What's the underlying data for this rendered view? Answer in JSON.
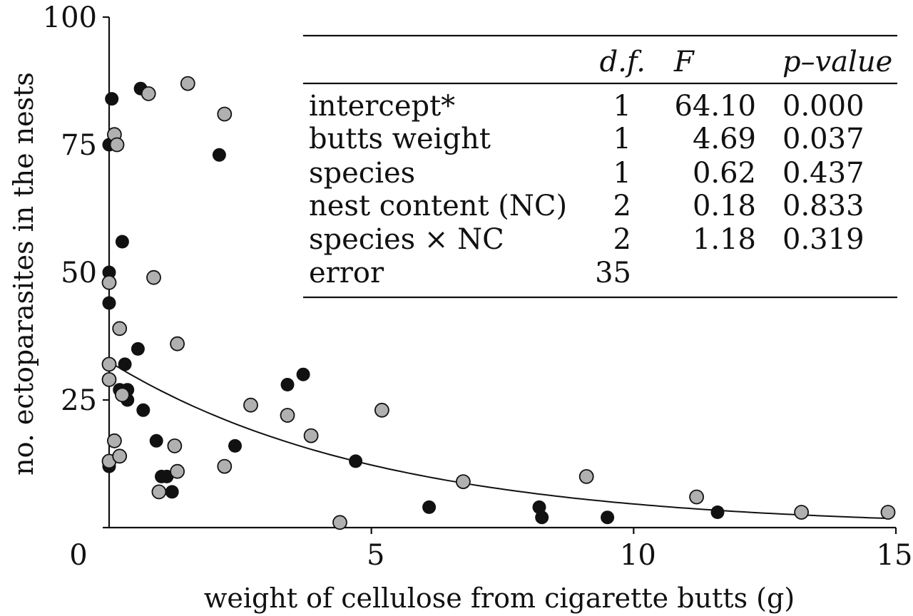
{
  "chart_data": {
    "type": "scatter",
    "xlabel": "weight of cellulose from cigarette butts (g)",
    "ylabel": "no. ectoparasites in the nests",
    "xlim": [
      0,
      15
    ],
    "ylim": [
      0,
      100
    ],
    "x_ticks": [
      "0",
      "5",
      "10",
      "15"
    ],
    "y_ticks": [
      "25",
      "50",
      "75",
      "100"
    ],
    "grid": false,
    "series": [
      {
        "color": "#111111",
        "marker": "circle-black",
        "points": [
          [
            0.0,
            12
          ],
          [
            0.0,
            44
          ],
          [
            0.0,
            50
          ],
          [
            0.0,
            75
          ],
          [
            0.05,
            84
          ],
          [
            0.25,
            56
          ],
          [
            0.2,
            27
          ],
          [
            0.35,
            27
          ],
          [
            0.3,
            32
          ],
          [
            0.35,
            25
          ],
          [
            0.6,
            86
          ],
          [
            0.55,
            35
          ],
          [
            0.65,
            23
          ],
          [
            0.9,
            17
          ],
          [
            1.0,
            10
          ],
          [
            1.1,
            10
          ],
          [
            1.2,
            7
          ],
          [
            2.1,
            73
          ],
          [
            2.4,
            16
          ],
          [
            3.4,
            28
          ],
          [
            3.7,
            30
          ],
          [
            4.7,
            13
          ],
          [
            6.1,
            4
          ],
          [
            8.2,
            4
          ],
          [
            8.25,
            2
          ],
          [
            9.5,
            2
          ],
          [
            11.6,
            3
          ]
        ]
      },
      {
        "color": "#b0b0b0",
        "marker": "circle-grey",
        "points": [
          [
            0.0,
            48
          ],
          [
            0.0,
            32
          ],
          [
            0.0,
            29
          ],
          [
            0.0,
            13
          ],
          [
            0.1,
            77
          ],
          [
            0.15,
            75
          ],
          [
            0.1,
            17
          ],
          [
            0.2,
            39
          ],
          [
            0.2,
            14
          ],
          [
            0.25,
            26
          ],
          [
            0.75,
            85
          ],
          [
            0.85,
            49
          ],
          [
            0.95,
            7
          ],
          [
            1.25,
            16
          ],
          [
            1.3,
            36
          ],
          [
            1.3,
            11
          ],
          [
            1.5,
            87
          ],
          [
            2.2,
            81
          ],
          [
            2.2,
            12
          ],
          [
            2.7,
            24
          ],
          [
            3.4,
            22
          ],
          [
            3.85,
            18
          ],
          [
            4.4,
            1
          ],
          [
            5.2,
            23
          ],
          [
            6.75,
            9
          ],
          [
            9.1,
            10
          ],
          [
            11.2,
            6
          ],
          [
            13.2,
            3
          ],
          [
            14.85,
            3
          ]
        ]
      }
    ],
    "fit": {
      "type": "exponential",
      "y0": 32.5,
      "rate": 0.195,
      "x_range": [
        0,
        14.85
      ],
      "color": "#111111"
    },
    "inset_table": {
      "headers": [
        "",
        "d.f.",
        "F",
        "p–value"
      ],
      "rows": [
        [
          "intercept*",
          "1",
          "64.10",
          "0.000"
        ],
        [
          "butts weight",
          "1",
          "4.69",
          "0.037"
        ],
        [
          "species",
          "1",
          "0.62",
          "0.437"
        ],
        [
          "nest content (NC)",
          "2",
          "0.18",
          "0.833"
        ],
        [
          "species × NC",
          "2",
          "1.18",
          "0.319"
        ],
        [
          "error",
          "35",
          "",
          ""
        ]
      ]
    }
  }
}
